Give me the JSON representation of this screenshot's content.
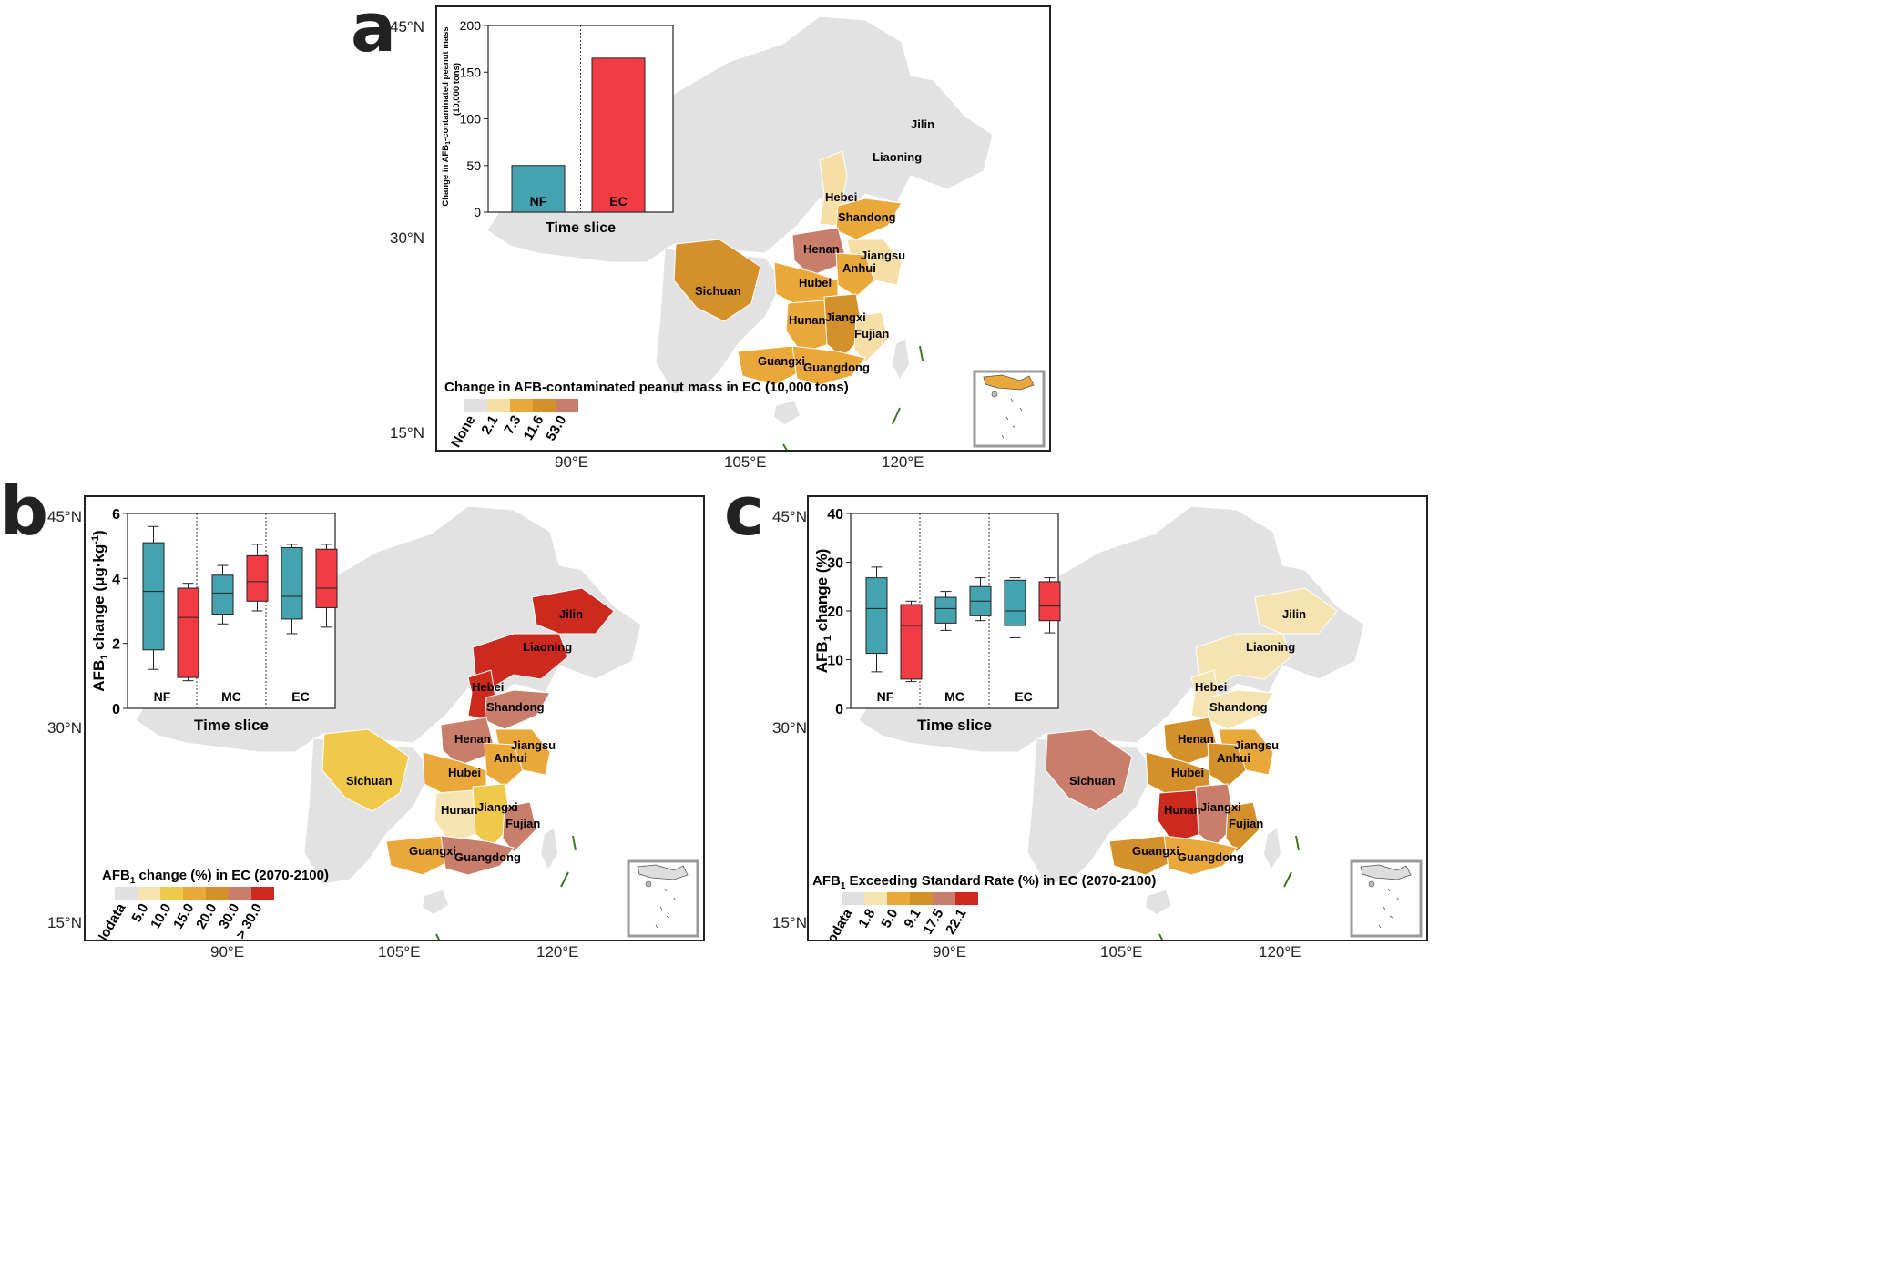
{
  "panel_a": {
    "letter": "a",
    "lat_ticks": [
      "45°N",
      "30°N",
      "15°N"
    ],
    "lon_ticks": [
      "90°E",
      "105°E",
      "120°E"
    ],
    "provinces": [
      "Jilin",
      "Liaoning",
      "Hebei",
      "Shandong",
      "Henan",
      "Jiangsu",
      "Anhui",
      "Hubei",
      "Sichuan",
      "Hunan",
      "Jiangxi",
      "Fujian",
      "Guangxi",
      "Guangdong"
    ],
    "legend": {
      "title": "Change in AFB-contaminated peanut mass in  EC (10,000 tons)",
      "labels": [
        "None",
        "2.1",
        "7.3",
        "11.6",
        "53.0"
      ],
      "colors": [
        "#e0e0e0",
        "#f5dfa7",
        "#eba83a",
        "#d4902a",
        "#c97d6b"
      ]
    },
    "inset_chart": {
      "type": "bar",
      "ylabel_line1": "Change in AFB",
      "ylabel_sub": "1",
      "ylabel_line1_rest": "-contaminated peanut mass",
      "ylabel_line2": "(10,000 tons)",
      "xlabel": "Time slice",
      "yticks": [
        "0",
        "50",
        "100",
        "150",
        "200"
      ]
    }
  },
  "panel_b": {
    "letter": "b",
    "lat_ticks": [
      "45°N",
      "30°N",
      "15°N"
    ],
    "lon_ticks": [
      "90°E",
      "105°E",
      "120°E"
    ],
    "provinces": [
      "Jilin",
      "Liaoning",
      "Hebei",
      "Shandong",
      "Henan",
      "Jiangsu",
      "Anhui",
      "Hubei",
      "Sichuan",
      "Hunan",
      "Jiangxi",
      "Fujian",
      "Guangxi",
      "Guangdong"
    ],
    "legend": {
      "title_main": "AFB",
      "title_sub": "1",
      "title_rest": " change (%) in EC (2070-2100)",
      "labels": [
        "Nodata",
        "5.0",
        "10.0",
        "15.0",
        "20.0",
        "30.0",
        "> 30.0"
      ],
      "colors": [
        "#e0e0e0",
        "#f5e3b0",
        "#f0c84a",
        "#eba83a",
        "#d4902a",
        "#c97d6b",
        "#cc2a1e"
      ]
    },
    "inset_chart": {
      "type": "box",
      "ylabel_main": "AFB",
      "ylabel_sub": "1",
      "ylabel_rest": " change (μg·kg",
      "ylabel_sup": "-1",
      "ylabel_end": ")",
      "xlabel": "Time slice",
      "yticks": [
        "0",
        "2",
        "4",
        "6"
      ]
    }
  },
  "panel_c": {
    "letter": "c",
    "lat_ticks": [
      "45°N",
      "30°N",
      "15°N"
    ],
    "lon_ticks": [
      "90°E",
      "105°E",
      "120°E"
    ],
    "provinces": [
      "Jilin",
      "Liaoning",
      "Hebei",
      "Shandong",
      "Henan",
      "Jiangsu",
      "Anhui",
      "Hubei",
      "Sichuan",
      "Hunan",
      "Jiangxi",
      "Fujian",
      "Guangxi",
      "Guangdong"
    ],
    "legend": {
      "title_main": "AFB",
      "title_sub": "1",
      "title_rest": " Exceeding Standard Rate (%) in EC (2070-2100)",
      "labels": [
        "Nodata",
        "1.8",
        "5.0",
        "9.1",
        "17.5",
        "22.1"
      ],
      "colors": [
        "#e0e0e0",
        "#f5e3b0",
        "#eba83a",
        "#d4902a",
        "#c97d6b",
        "#cc2a1e"
      ]
    },
    "inset_chart": {
      "type": "box",
      "ylabel_main": "AFB",
      "ylabel_sub": "1",
      "ylabel_rest": " change (%)",
      "xlabel": "Time slice",
      "yticks": [
        "0",
        "10",
        "20",
        "30",
        "40"
      ]
    }
  },
  "chart_data": [
    {
      "type": "bar",
      "panel": "a",
      "title": "",
      "xlabel": "Time slice",
      "ylabel": "Change in AFB1-contaminated peanut mass (10,000 tons)",
      "ylim": [
        0,
        200
      ],
      "categories": [
        "NF",
        "EC"
      ],
      "values": [
        50,
        165
      ],
      "colors": [
        "#45a3b0",
        "#f23c44"
      ]
    },
    {
      "type": "box",
      "panel": "b",
      "xlabel": "Time slice",
      "ylabel": "AFB1 change (μg·kg-1)",
      "ylim": [
        0,
        6
      ],
      "groups": [
        "NF",
        "MC",
        "EC"
      ],
      "series": [
        {
          "name": "NF-cyan",
          "group": "NF",
          "color": "#45a3b0",
          "min": 1.2,
          "q1": 1.8,
          "median": 3.6,
          "q3": 5.1,
          "max": 5.6
        },
        {
          "name": "NF-red",
          "group": "NF",
          "color": "#f23c44",
          "min": 0.85,
          "q1": 0.95,
          "median": 2.8,
          "q3": 3.7,
          "max": 3.85
        },
        {
          "name": "MC-cyan",
          "group": "MC",
          "color": "#45a3b0",
          "min": 2.6,
          "q1": 2.9,
          "median": 3.55,
          "q3": 4.1,
          "max": 4.4
        },
        {
          "name": "MC-red",
          "group": "MC",
          "color": "#f23c44",
          "min": 3.0,
          "q1": 3.3,
          "median": 3.9,
          "q3": 4.7,
          "max": 5.05
        },
        {
          "name": "EC-cyan",
          "group": "EC",
          "color": "#45a3b0",
          "min": 2.3,
          "q1": 2.75,
          "median": 3.45,
          "q3": 4.95,
          "max": 5.05
        },
        {
          "name": "EC-red",
          "group": "EC",
          "color": "#f23c44",
          "min": 2.5,
          "q1": 3.1,
          "median": 3.7,
          "q3": 4.9,
          "max": 5.05
        }
      ]
    },
    {
      "type": "box",
      "panel": "c",
      "xlabel": "Time slice",
      "ylabel": "AFB1 change (%)",
      "ylim": [
        0,
        40
      ],
      "groups": [
        "NF",
        "MC",
        "EC"
      ],
      "series": [
        {
          "name": "NF-cyan",
          "group": "NF",
          "color": "#45a3b0",
          "min": 7.5,
          "q1": 11.3,
          "median": 20.5,
          "q3": 26.8,
          "max": 29.0
        },
        {
          "name": "NF-red",
          "group": "NF",
          "color": "#f23c44",
          "min": 5.5,
          "q1": 6.0,
          "median": 17.0,
          "q3": 21.3,
          "max": 22.0
        },
        {
          "name": "MC-cyan",
          "group": "MC",
          "color": "#45a3b0",
          "min": 16.0,
          "q1": 17.5,
          "median": 20.5,
          "q3": 22.8,
          "max": 24.0
        },
        {
          "name": "MC-red",
          "group": "MC",
          "color": "#45a3b0",
          "min": 18.0,
          "q1": 19.0,
          "median": 22.0,
          "q3": 25.0,
          "max": 26.8
        },
        {
          "name": "EC-cyan",
          "group": "EC",
          "color": "#45a3b0",
          "min": 14.5,
          "q1": 17.0,
          "median": 20.0,
          "q3": 26.3,
          "max": 26.8
        },
        {
          "name": "EC-red",
          "group": "EC",
          "color": "#f23c44",
          "min": 15.5,
          "q1": 18.0,
          "median": 21.0,
          "q3": 26.0,
          "max": 26.8
        }
      ]
    }
  ]
}
